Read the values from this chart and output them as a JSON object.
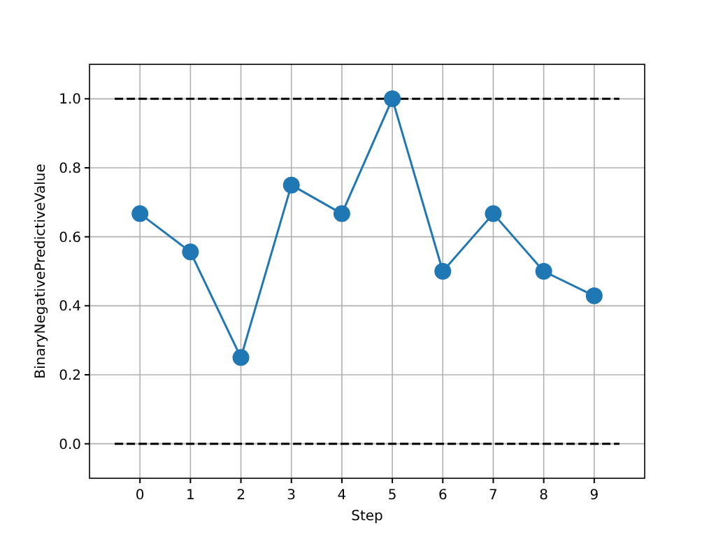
{
  "chart_data": {
    "type": "line",
    "xlabel": "Step",
    "ylabel": "BinaryNegativePredictiveValue",
    "xlim": [
      -1,
      10
    ],
    "ylim": [
      -0.1,
      1.1
    ],
    "xticks": [
      0,
      1,
      2,
      3,
      4,
      5,
      6,
      7,
      8,
      9
    ],
    "yticks": [
      {
        "value": 0,
        "label": "0.0"
      },
      {
        "value": 0.2,
        "label": "0.2"
      },
      {
        "value": 0.4,
        "label": "0.4"
      },
      {
        "value": 0.6,
        "label": "0.6"
      },
      {
        "value": 0.8,
        "label": "0.8"
      },
      {
        "value": 1,
        "label": "1.0"
      }
    ],
    "grid": true,
    "series": [
      {
        "color": "#000000",
        "line_style": "dashed",
        "marker": "none",
        "x": [
          -0.5,
          9.5
        ],
        "values": [
          1,
          1
        ]
      },
      {
        "color": "#000000",
        "line_style": "dashed",
        "marker": "none",
        "x": [
          -0.5,
          9.5
        ],
        "values": [
          0,
          0
        ]
      },
      {
        "color": "#1f77b4",
        "line_style": "solid",
        "marker": "circle",
        "x": [
          0,
          1,
          2,
          3,
          4,
          5,
          6,
          7,
          8,
          9
        ],
        "values": [
          0.667,
          0.556,
          0.25,
          0.75,
          0.667,
          1.0,
          0.5,
          0.667,
          0.5,
          0.429
        ]
      }
    ]
  }
}
